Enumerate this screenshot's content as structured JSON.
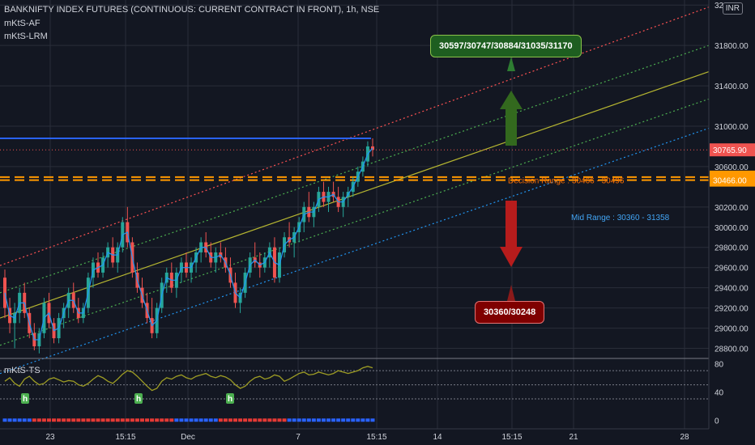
{
  "header": {
    "title": "BANKNIFTY INDEX FUTURES (CONTINUOUS: CURRENT CONTRACT IN FRONT), 1h, NSE",
    "indicator1": "mKtS-AF",
    "indicator2": "mKtS-LRM",
    "sub_indicator": "mKtS-TS"
  },
  "currency_label": "INR",
  "colors": {
    "background": "#131722",
    "grid": "#2a2e39",
    "up": "#26a69a",
    "down": "#ef5350",
    "upper_channel": "#ff5252",
    "upper_mid_channel": "#4caf50",
    "mid_line": "#b5b531",
    "lower_mid_channel": "#4caf50",
    "lower_channel": "#2196f3",
    "decision_lines": "#ff9800",
    "resistance": "#2962ff",
    "target_up_box": "#1e5e20",
    "target_down_box": "#7f0000"
  },
  "chart_data": {
    "type": "candlestick",
    "y_axis_labels": [
      "28800.00",
      "29000.00",
      "29200.00",
      "29400.00",
      "29600.00",
      "29800.00",
      "30000.00",
      "30200.00",
      "30600.00",
      "31000.00",
      "31400.00",
      "31800.00",
      "32"
    ],
    "x_axis_labels": [
      "23",
      "15:15",
      "Dec",
      "7",
      "15:15",
      "14",
      "15:15",
      "21",
      "28"
    ],
    "ylim": [
      28700,
      32250
    ],
    "price_tags": [
      {
        "value": 30765.9,
        "label": "30765.90",
        "color": "#ef5350"
      },
      {
        "value": 30496.0,
        "label": "30496.00",
        "color": "#ff9800"
      },
      {
        "value": 30466.0,
        "label": "30466.00",
        "color": "#ff9800"
      }
    ],
    "decision_range_label": "Decision Range : 30466 - 30496",
    "mid_range_label": "Mid Range : 30360 - 31358",
    "target_up_label": "30597/30747/30884/31035/31170",
    "target_down_label": "30360/30248",
    "resistance_level": 30880,
    "last_price": 30765.9,
    "channel_lines": [
      {
        "name": "upper",
        "x0": 0,
        "y0": 29620,
        "x1": 875,
        "y1": 32180
      },
      {
        "name": "upper-mid",
        "x0": 0,
        "y0": 29350,
        "x1": 875,
        "y1": 31800
      },
      {
        "name": "mid",
        "x0": 0,
        "y0": 29100,
        "x1": 875,
        "y1": 31540
      },
      {
        "name": "lower-mid",
        "x0": 0,
        "y0": 28830,
        "x1": 875,
        "y1": 31270
      },
      {
        "name": "lower",
        "x0": 0,
        "y0": 28550,
        "x1": 875,
        "y1": 30980
      }
    ],
    "candles": [
      [
        29500,
        29580,
        29100,
        29200
      ],
      [
        29200,
        29300,
        28950,
        29050
      ],
      [
        29050,
        29250,
        28800,
        29150
      ],
      [
        29150,
        29400,
        29050,
        29350
      ],
      [
        29350,
        29450,
        29100,
        29150
      ],
      [
        29150,
        29200,
        28900,
        28950
      ],
      [
        28950,
        29050,
        28780,
        28820
      ],
      [
        28820,
        29000,
        28750,
        28950
      ],
      [
        28950,
        29300,
        28900,
        29250
      ],
      [
        29250,
        29350,
        29000,
        29050
      ],
      [
        29050,
        29100,
        28850,
        28900
      ],
      [
        28900,
        29150,
        28850,
        29100
      ],
      [
        29100,
        29250,
        29000,
        29200
      ],
      [
        29200,
        29400,
        29100,
        29350
      ],
      [
        29350,
        29450,
        29150,
        29200
      ],
      [
        29200,
        29300,
        29050,
        29100
      ],
      [
        29100,
        29250,
        29050,
        29200
      ],
      [
        29200,
        29550,
        29150,
        29500
      ],
      [
        29500,
        29700,
        29400,
        29650
      ],
      [
        29650,
        29750,
        29500,
        29550
      ],
      [
        29550,
        29750,
        29500,
        29700
      ],
      [
        29700,
        29850,
        29600,
        29800
      ],
      [
        29800,
        29900,
        29600,
        29650
      ],
      [
        29650,
        29850,
        29550,
        29800
      ],
      [
        29800,
        30100,
        29750,
        30050
      ],
      [
        30050,
        30200,
        29800,
        29850
      ],
      [
        29850,
        29900,
        29500,
        29550
      ],
      [
        29550,
        29650,
        29350,
        29400
      ],
      [
        29400,
        29500,
        29200,
        29250
      ],
      [
        29250,
        29350,
        29050,
        29100
      ],
      [
        29100,
        29300,
        28900,
        28950
      ],
      [
        28950,
        29250,
        28900,
        29200
      ],
      [
        29200,
        29500,
        29150,
        29450
      ],
      [
        29450,
        29600,
        29350,
        29550
      ],
      [
        29550,
        29650,
        29350,
        29400
      ],
      [
        29400,
        29600,
        29300,
        29550
      ],
      [
        29550,
        29700,
        29450,
        29650
      ],
      [
        29650,
        29750,
        29500,
        29550
      ],
      [
        29550,
        29700,
        29450,
        29650
      ],
      [
        29650,
        29800,
        29550,
        29750
      ],
      [
        29750,
        29900,
        29650,
        29850
      ],
      [
        29850,
        29950,
        29700,
        29750
      ],
      [
        29750,
        29850,
        29600,
        29650
      ],
      [
        29650,
        29800,
        29550,
        29750
      ],
      [
        29750,
        29850,
        29650,
        29700
      ],
      [
        29700,
        29800,
        29550,
        29600
      ],
      [
        29600,
        29700,
        29400,
        29450
      ],
      [
        29450,
        29550,
        29200,
        29250
      ],
      [
        29250,
        29400,
        29150,
        29350
      ],
      [
        29350,
        29600,
        29300,
        29550
      ],
      [
        29550,
        29750,
        29500,
        29700
      ],
      [
        29700,
        29850,
        29600,
        29650
      ],
      [
        29650,
        29750,
        29500,
        29600
      ],
      [
        29600,
        29750,
        29550,
        29700
      ],
      [
        29700,
        29850,
        29600,
        29800
      ],
      [
        29800,
        29900,
        29450,
        29500
      ],
      [
        29500,
        29800,
        29450,
        29750
      ],
      [
        29750,
        29950,
        29700,
        29900
      ],
      [
        29900,
        30050,
        29800,
        29850
      ],
      [
        29850,
        30000,
        29700,
        29950
      ],
      [
        29950,
        30100,
        29850,
        30050
      ],
      [
        30050,
        30250,
        29950,
        30200
      ],
      [
        30200,
        30350,
        30050,
        30100
      ],
      [
        30100,
        30250,
        30000,
        30200
      ],
      [
        30200,
        30400,
        30150,
        30350
      ],
      [
        30350,
        30450,
        30200,
        30250
      ],
      [
        30250,
        30400,
        30150,
        30350
      ],
      [
        30350,
        30450,
        30250,
        30300
      ],
      [
        30300,
        30400,
        30150,
        30200
      ],
      [
        30200,
        30350,
        30100,
        30300
      ],
      [
        30300,
        30400,
        30200,
        30350
      ],
      [
        30350,
        30500,
        30300,
        30450
      ],
      [
        30450,
        30600,
        30400,
        30550
      ],
      [
        30550,
        30700,
        30500,
        30650
      ],
      [
        30650,
        30850,
        30600,
        30800
      ],
      [
        30800,
        30880,
        30700,
        30766
      ]
    ],
    "oscillator": {
      "ylim": [
        -10,
        85
      ],
      "y_axis_labels": [
        "80",
        "40",
        "0"
      ],
      "levels": [
        70,
        50,
        30
      ],
      "values": [
        55,
        60,
        52,
        48,
        58,
        62,
        55,
        50,
        52,
        58,
        60,
        57,
        54,
        56,
        55,
        50,
        48,
        52,
        58,
        63,
        60,
        55,
        52,
        58,
        65,
        70,
        68,
        62,
        55,
        48,
        42,
        45,
        55,
        60,
        58,
        62,
        64,
        60,
        58,
        62,
        64,
        66,
        62,
        60,
        63,
        61,
        57,
        50,
        45,
        48,
        55,
        60,
        62,
        58,
        60,
        64,
        62,
        55,
        58,
        62,
        66,
        68,
        64,
        65,
        68,
        66,
        64,
        66,
        70,
        68,
        66,
        68,
        70,
        74,
        76,
        74
      ],
      "signal_labels": [
        "h",
        "h",
        "h"
      ]
    }
  }
}
